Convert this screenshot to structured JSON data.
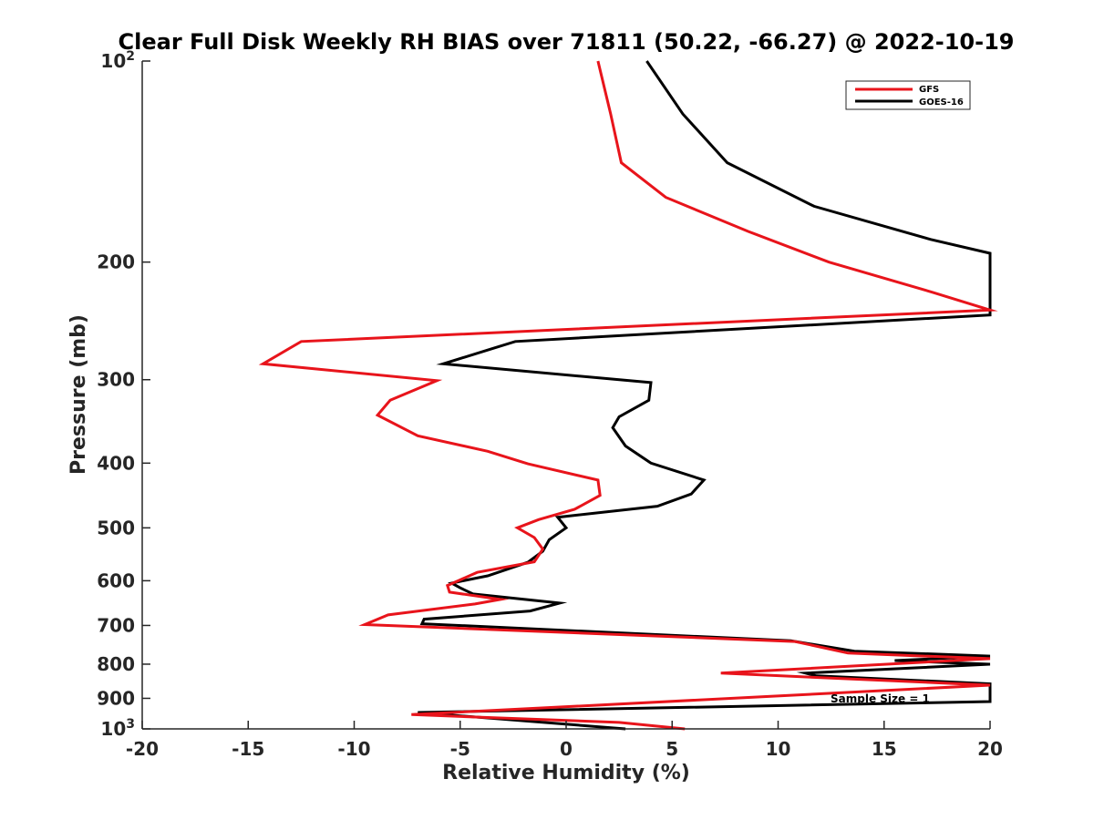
{
  "chart_data": {
    "type": "line",
    "title": "Clear Full Disk Weekly RH BIAS over 71811 (50.22, -66.27) @ 2022-10-19",
    "xlabel": "Relative Humidity (%)",
    "ylabel": "Pressure (mb)",
    "xlim": [
      -20,
      20
    ],
    "ylim": [
      100,
      1000
    ],
    "yscale": "log",
    "y_reversed": true,
    "grid": false,
    "legend_position": "top-right",
    "x_ticks": [
      "-20",
      "-15",
      "-10",
      "-5",
      "0",
      "5",
      "10",
      "15",
      "20"
    ],
    "y_ticks": [
      {
        "value": 100,
        "base": "10",
        "exp": "2"
      },
      {
        "value": 200,
        "label": "200"
      },
      {
        "value": 300,
        "label": "300"
      },
      {
        "value": 400,
        "label": "400"
      },
      {
        "value": 500,
        "label": "500"
      },
      {
        "value": 600,
        "label": "600"
      },
      {
        "value": 700,
        "label": "700"
      },
      {
        "value": 800,
        "label": "800"
      },
      {
        "value": 900,
        "label": "900"
      },
      {
        "value": 1000,
        "base": "10",
        "exp": "3"
      }
    ],
    "series": [
      {
        "name": "GFS",
        "color": "#e8141b",
        "points": [
          [
            1.5,
            100
          ],
          [
            2.1,
            120
          ],
          [
            2.6,
            142
          ],
          [
            4.7,
            160
          ],
          [
            8.6,
            180
          ],
          [
            12.4,
            200
          ],
          [
            17.3,
            222
          ],
          [
            20.0,
            236
          ],
          [
            -12.5,
            263
          ],
          [
            -14.3,
            284
          ],
          [
            -6.1,
            301
          ],
          [
            -8.3,
            322
          ],
          [
            -8.9,
            339
          ],
          [
            -7.0,
            364
          ],
          [
            -3.7,
            384
          ],
          [
            -1.8,
            401
          ],
          [
            1.5,
            424
          ],
          [
            1.6,
            447
          ],
          [
            0.4,
            469
          ],
          [
            -1.3,
            486
          ],
          [
            -2.3,
            500
          ],
          [
            -1.5,
            517
          ],
          [
            -1.1,
            538
          ],
          [
            -1.5,
            562
          ],
          [
            -4.2,
            583
          ],
          [
            -5.6,
            610
          ],
          [
            -5.5,
            624
          ],
          [
            -3.1,
            640
          ],
          [
            -4.3,
            650
          ],
          [
            -8.4,
            675
          ],
          [
            -9.5,
            698
          ],
          [
            10.8,
            740
          ],
          [
            13.3,
            770
          ],
          [
            20.0,
            785
          ],
          [
            7.3,
            825
          ],
          [
            20.0,
            860
          ],
          [
            -7.3,
            952
          ],
          [
            2.5,
            978
          ],
          [
            5.6,
            1000
          ]
        ]
      },
      {
        "name": "GOES-16",
        "color": "#000000",
        "points": [
          [
            3.8,
            100
          ],
          [
            5.5,
            120
          ],
          [
            7.6,
            142
          ],
          [
            11.7,
            165
          ],
          [
            17.2,
            185
          ],
          [
            20.0,
            194
          ],
          [
            20.0,
            240
          ],
          [
            -2.4,
            263
          ],
          [
            -5.8,
            284
          ],
          [
            4.0,
            303
          ],
          [
            3.9,
            322
          ],
          [
            2.5,
            341
          ],
          [
            2.2,
            354
          ],
          [
            2.8,
            377
          ],
          [
            4.0,
            400
          ],
          [
            6.5,
            424
          ],
          [
            5.9,
            445
          ],
          [
            4.3,
            464
          ],
          [
            -0.4,
            482
          ],
          [
            0.0,
            500
          ],
          [
            -0.8,
            521
          ],
          [
            -1.1,
            542
          ],
          [
            -1.8,
            563
          ],
          [
            -3.7,
            590
          ],
          [
            -5.4,
            605
          ],
          [
            -5.0,
            615
          ],
          [
            -4.4,
            628
          ],
          [
            -0.3,
            648
          ],
          [
            -1.7,
            666
          ],
          [
            -6.7,
            685
          ],
          [
            -6.8,
            696
          ],
          [
            10.6,
            738
          ],
          [
            13.6,
            765
          ],
          [
            20.0,
            778
          ],
          [
            15.5,
            790
          ],
          [
            20.0,
            800
          ],
          [
            11.3,
            825
          ],
          [
            11.8,
            833
          ],
          [
            20.0,
            856
          ],
          [
            20.0,
            910
          ],
          [
            -7.0,
            945
          ],
          [
            2.8,
            1000
          ]
        ]
      }
    ],
    "annotations": [
      "Sample Size = 1"
    ]
  }
}
